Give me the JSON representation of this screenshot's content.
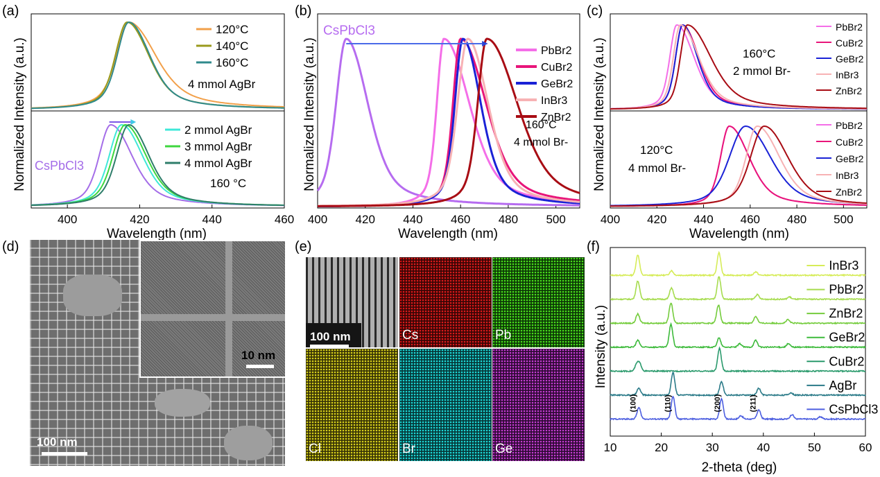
{
  "panels": {
    "a": {
      "label": "(a)"
    },
    "b": {
      "label": "(b)"
    },
    "c": {
      "label": "(c)"
    },
    "d": {
      "label": "(d)",
      "scale_main": "100 nm",
      "scale_inset": "10 nm"
    },
    "e": {
      "label": "(e)",
      "scale": "100 nm",
      "tiles": [
        {
          "name": "",
          "color": "#9a9a9a"
        },
        {
          "name": "Cs",
          "color": "#d41414"
        },
        {
          "name": "Pb",
          "color": "#3fcf18"
        },
        {
          "name": "Cl",
          "color": "#d8d21a"
        },
        {
          "name": "Br",
          "color": "#1ad6d6"
        },
        {
          "name": "Ge",
          "color": "#c23ad0"
        }
      ]
    },
    "f": {
      "label": "(f)"
    }
  },
  "chart_data": [
    {
      "id": "a-top",
      "type": "line",
      "xlabel": "",
      "ylabel": "Normalized Intensity (a.u.)",
      "xlim": [
        390,
        460
      ],
      "legend_note": "4 mmol AgBr",
      "series": [
        {
          "name": "120°C",
          "color": "#f2a04a",
          "peak": 417,
          "sigL": 3.2,
          "sigR": 6.8,
          "tail": 0.2
        },
        {
          "name": "140°C",
          "color": "#9a9a1c",
          "peak": 416.5,
          "sigL": 3.0,
          "sigR": 5.6,
          "tail": 0.1
        },
        {
          "name": "160°C",
          "color": "#2f8a8c",
          "peak": 417,
          "sigL": 3.0,
          "sigR": 5.4,
          "tail": 0.1
        }
      ]
    },
    {
      "id": "a-bottom",
      "type": "line",
      "xlabel": "Wavelength (nm)",
      "xlim": [
        390,
        460
      ],
      "xticks": [
        400,
        420,
        440,
        460
      ],
      "annotations": [
        "CsPbCl3",
        "160 °C"
      ],
      "series": [
        {
          "name": "",
          "color": "#a46de8",
          "peak": 412,
          "sigL": 3.0,
          "sigR": 5.5,
          "tail": 0.1
        },
        {
          "name": "2 mmol AgBr",
          "color": "#3fe8d8",
          "peak": 415,
          "sigL": 3.2,
          "sigR": 5.4,
          "tail": 0.1
        },
        {
          "name": "3 mmol AgBr",
          "color": "#3ed63e",
          "peak": 416,
          "sigL": 3.2,
          "sigR": 5.4,
          "tail": 0.1
        },
        {
          "name": "4 mmol AgBr",
          "color": "#2e7d6a",
          "peak": 417,
          "sigL": 3.2,
          "sigR": 5.2,
          "tail": 0.1
        }
      ]
    },
    {
      "id": "b",
      "type": "line",
      "xlabel": "Wavelength (nm)",
      "ylabel": "Normalized Intensity (a.u.)",
      "xlim": [
        400,
        510
      ],
      "xticks": [
        400,
        420,
        440,
        460,
        480,
        500
      ],
      "annotations": [
        "CsPbCl3",
        "160°C",
        "4 mmol Br-"
      ],
      "series": [
        {
          "name": "",
          "color": "#b66cf0",
          "peak": 412,
          "sigL": 4.0,
          "sigR": 8.5,
          "tail": 0.0
        },
        {
          "name": "PbBr2",
          "color": "#f46ee8",
          "peak": 453,
          "sigL": 2.8,
          "sigR": 10.0,
          "tail": 0.0
        },
        {
          "name": "CuBr2",
          "color": "#e8157a",
          "peak": 460,
          "sigL": 3.0,
          "sigR": 10.0,
          "tail": 0.0
        },
        {
          "name": "GeBr2",
          "color": "#1a22d6",
          "peak": 461,
          "sigL": 3.2,
          "sigR": 7.0,
          "tail": 0.0
        },
        {
          "name": "InBr3",
          "color": "#f7b2b4",
          "peak": 463,
          "sigL": 4.0,
          "sigR": 8.0,
          "tail": 0.0
        },
        {
          "name": "ZnBr2",
          "color": "#a80c14",
          "peak": 471,
          "sigL": 3.6,
          "sigR": 12.0,
          "tail": 0.0
        }
      ]
    },
    {
      "id": "c-top",
      "type": "line",
      "ylabel": "Normalized Intensity (a.u.)",
      "xlim": [
        400,
        510
      ],
      "annotations": [
        "160°C",
        "2 mmol Br-"
      ],
      "series": [
        {
          "name": "PbBr2",
          "color": "#f46ee8",
          "peak": 428.5,
          "sigL": 2.8,
          "sigR": 7.0,
          "tail": 0.0
        },
        {
          "name": "CuBr2",
          "color": "#e8157a",
          "peak": 431,
          "sigL": 2.8,
          "sigR": 6.5,
          "tail": 0.0
        },
        {
          "name": "GeBr2",
          "color": "#1a22d6",
          "peak": 431,
          "sigL": 2.8,
          "sigR": 6.0,
          "tail": 0.0
        },
        {
          "name": "InBr3",
          "color": "#f7b2b4",
          "peak": 430,
          "sigL": 2.8,
          "sigR": 7.5,
          "tail": 0.0
        },
        {
          "name": "ZnBr2",
          "color": "#a80c14",
          "peak": 433,
          "sigL": 2.8,
          "sigR": 9.5,
          "tail": 0.0
        }
      ]
    },
    {
      "id": "c-bottom",
      "type": "line",
      "xlabel": "Wavelength (nm)",
      "xlim": [
        400,
        510
      ],
      "xticks": [
        400,
        420,
        440,
        460,
        480,
        500
      ],
      "annotations": [
        "120°C",
        "4 mmol Br-"
      ],
      "series": [
        {
          "name": "PbBr2",
          "color": "#f46ee8",
          "peak": 451,
          "sigL": 3.5,
          "sigR": 8.0,
          "tail": 0.0
        },
        {
          "name": "CuBr2",
          "color": "#e8157a",
          "peak": 451,
          "sigL": 3.5,
          "sigR": 8.0,
          "tail": 0.0
        },
        {
          "name": "GeBr2",
          "color": "#1a22d6",
          "peak": 458,
          "sigL": 6.5,
          "sigR": 10.0,
          "tail": 0.0
        },
        {
          "name": "InBr3",
          "color": "#f7b2b4",
          "peak": 463,
          "sigL": 4.5,
          "sigR": 9.0,
          "tail": 0.0
        },
        {
          "name": "ZnBr2",
          "color": "#a80c14",
          "peak": 466,
          "sigL": 5.5,
          "sigR": 9.5,
          "tail": 0.0
        }
      ]
    },
    {
      "id": "f",
      "type": "line",
      "xlabel": "2-theta (deg)",
      "ylabel": "Intensity (a.u.)",
      "xlim": [
        10,
        60
      ],
      "xticks": [
        10,
        20,
        30,
        40,
        50,
        60
      ],
      "peak_labels": [
        {
          "text": "(100)",
          "x": 15.5
        },
        {
          "text": "(110)",
          "x": 22.3
        },
        {
          "text": "(200)",
          "x": 32.0
        },
        {
          "text": "(211)",
          "x": 39.0
        }
      ],
      "series": [
        {
          "name": "InBr3",
          "color": "#d6ec58",
          "peaks": [
            [
              15.4,
              0.9
            ],
            [
              22.0,
              0.2
            ],
            [
              31.3,
              1.0
            ],
            [
              38.5,
              0.15
            ]
          ]
        },
        {
          "name": "PbBr2",
          "color": "#a6dc4e",
          "peaks": [
            [
              15.4,
              0.8
            ],
            [
              22.0,
              0.5
            ],
            [
              31.3,
              1.0
            ],
            [
              38.8,
              0.2
            ],
            [
              45.1,
              0.1
            ]
          ]
        },
        {
          "name": "ZnBr2",
          "color": "#74cc3c",
          "peaks": [
            [
              15.4,
              0.4
            ],
            [
              21.9,
              0.9
            ],
            [
              31.2,
              0.8
            ],
            [
              38.5,
              0.3
            ],
            [
              44.8,
              0.15
            ]
          ]
        },
        {
          "name": "GeBr2",
          "color": "#3cba3a",
          "peaks": [
            [
              15.4,
              0.3
            ],
            [
              21.9,
              1.0
            ],
            [
              31.3,
              0.4
            ],
            [
              35.4,
              0.15
            ],
            [
              38.5,
              0.3
            ],
            [
              44.9,
              0.15
            ]
          ]
        },
        {
          "name": "CuBr2",
          "color": "#2a9a6c",
          "peaks": [
            [
              15.2,
              0.3
            ],
            [
              15.8,
              0.3
            ],
            [
              31.4,
              1.0
            ]
          ]
        },
        {
          "name": "AgBr",
          "color": "#2a7a88",
          "peaks": [
            [
              15.6,
              0.3
            ],
            [
              22.3,
              1.0
            ],
            [
              31.8,
              0.6
            ],
            [
              39.1,
              0.3
            ],
            [
              45.4,
              0.1
            ]
          ]
        },
        {
          "name": "CsPbCl3",
          "color": "#4c5ee0",
          "peaks": [
            [
              15.6,
              0.5
            ],
            [
              22.3,
              1.0
            ],
            [
              31.8,
              0.9
            ],
            [
              35.6,
              0.15
            ],
            [
              39.1,
              0.4
            ],
            [
              45.6,
              0.2
            ],
            [
              51.2,
              0.1
            ]
          ]
        }
      ]
    }
  ]
}
